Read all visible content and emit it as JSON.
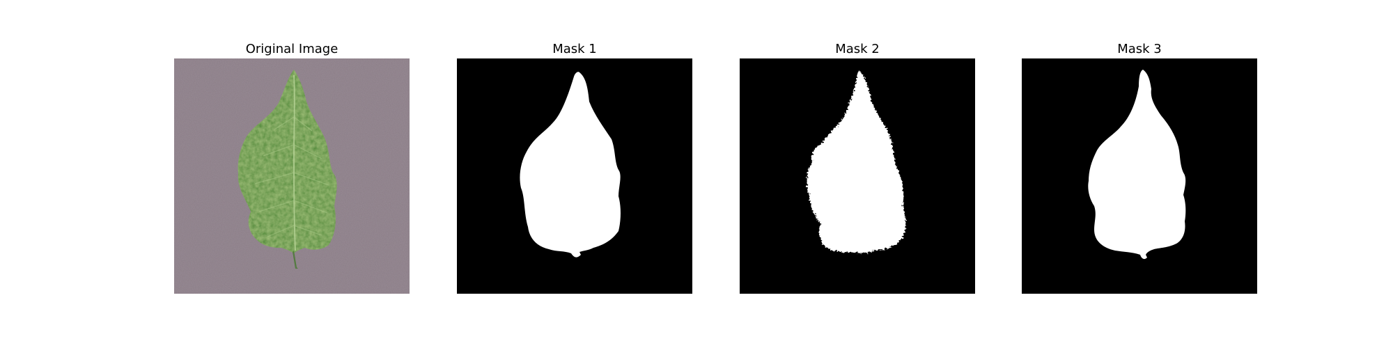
{
  "panels": [
    {
      "title": "Original Image"
    },
    {
      "title": "Mask 1"
    },
    {
      "title": "Mask 2"
    },
    {
      "title": "Mask 3"
    }
  ],
  "colors": {
    "background": "#ffffff",
    "surface": "#8a7c86",
    "leaf_dark": "#2f5e22",
    "leaf_mid": "#4f8a38",
    "leaf_light": "#7cae52",
    "mask_background": "#000000",
    "mask_foreground": "#ffffff"
  }
}
